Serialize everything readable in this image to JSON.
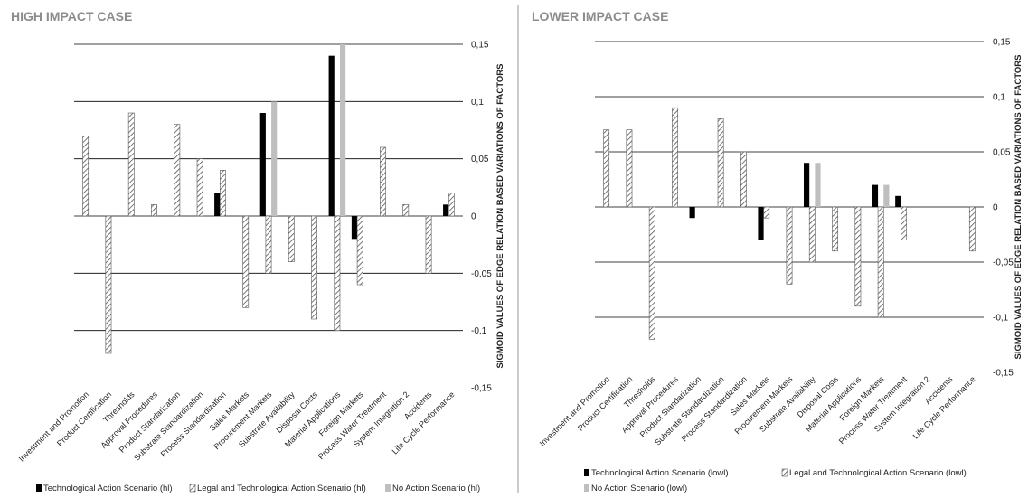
{
  "chart_data": [
    {
      "type": "bar",
      "title": "HIGH IMPACT CASE",
      "ylabel": "SIGMOID VALUES OF EDGE RELATION BASED VARIATIONS OF FACTORS",
      "ylim": [
        -0.15,
        0.15
      ],
      "yticks": [
        "0,15",
        "0,1",
        "0,05",
        "0",
        "-0,05",
        "-0,1",
        "-0,15"
      ],
      "grid": true,
      "legend_position": "bottom",
      "categories": [
        "Investment and Promotion",
        "Product Certification",
        "Thresholds",
        "Approval Procedures",
        "Product Standarization",
        "Substrate Standardization",
        "Process Standardization",
        "Sales Markets",
        "Procurement Markets",
        "Substrate Availability",
        "Disposal Costs",
        "Material Applications",
        "Foreign Markets",
        "Process Water Treatment",
        "System Integration 2",
        "Accidents",
        "Life Cycle Performance"
      ],
      "series": [
        {
          "name": "Technological Action Scenario (hl)",
          "color": "#000000",
          "pattern": "solid",
          "values": [
            0,
            0,
            0,
            0,
            0,
            0,
            0.02,
            0,
            0.09,
            0,
            0,
            0.14,
            -0.02,
            0,
            0,
            0,
            0.01
          ]
        },
        {
          "name": "Legal and Technological Action Scenario (hl)",
          "color": "#ffffff",
          "pattern": "hatch",
          "values": [
            0.07,
            -0.12,
            0.09,
            0.01,
            0.08,
            0.05,
            0.04,
            -0.08,
            -0.05,
            -0.04,
            -0.09,
            -0.1,
            -0.06,
            0.06,
            0.01,
            -0.05,
            0.02
          ]
        },
        {
          "name": "No Action Scenario (hl)",
          "color": "#bfbfbf",
          "pattern": "solid",
          "values": [
            0,
            0,
            0,
            0,
            0,
            0,
            0,
            0,
            0.1,
            0,
            0,
            0.15,
            0,
            0,
            0,
            0,
            0
          ]
        }
      ]
    },
    {
      "type": "bar",
      "title": "LOWER IMPACT CASE",
      "ylabel": "SIGMOID VALUES OF EDGE RELATION BASED VARIATIONS OF FACTORS",
      "ylim": [
        -0.15,
        0.15
      ],
      "yticks": [
        "0,15",
        "0,1",
        "0,05",
        "0",
        "-0,05",
        "-0,1",
        "-0,15"
      ],
      "grid": true,
      "legend_position": "bottom",
      "categories": [
        "Investment and Promotion",
        "Product Certification",
        "Thresholds",
        "Approval Procedures",
        "Product Standarization",
        "Substrate Standardization",
        "Process Standardization",
        "Sales Markets",
        "Procurement Markets",
        "Substrate Availability",
        "Disposal Costs",
        "Material Applications",
        "Foreign Markets",
        "Process Water Treatment",
        "System Integration 2",
        "Accidents",
        "Life Cycle Performance"
      ],
      "series": [
        {
          "name": "Technological Action Scenario (lowl)",
          "color": "#000000",
          "pattern": "solid",
          "values": [
            0,
            0,
            0,
            0,
            -0.01,
            0,
            0,
            -0.03,
            0,
            0.04,
            0,
            0,
            0.02,
            0.01,
            0,
            0,
            0
          ]
        },
        {
          "name": "Legal and Technological Action Scenario (lowl)",
          "color": "#ffffff",
          "pattern": "hatch",
          "values": [
            0.07,
            0.07,
            -0.12,
            0.09,
            0,
            0.08,
            0.05,
            -0.01,
            -0.07,
            -0.05,
            -0.04,
            -0.09,
            -0.1,
            -0.03,
            0,
            0,
            -0.04
          ]
        },
        {
          "name": "No Action Scenario (lowl)",
          "color": "#bfbfbf",
          "pattern": "solid",
          "values": [
            0,
            0,
            0,
            0,
            0,
            0,
            0,
            0,
            0,
            0.04,
            0,
            0,
            0.02,
            0,
            0,
            0,
            0
          ]
        }
      ]
    }
  ]
}
